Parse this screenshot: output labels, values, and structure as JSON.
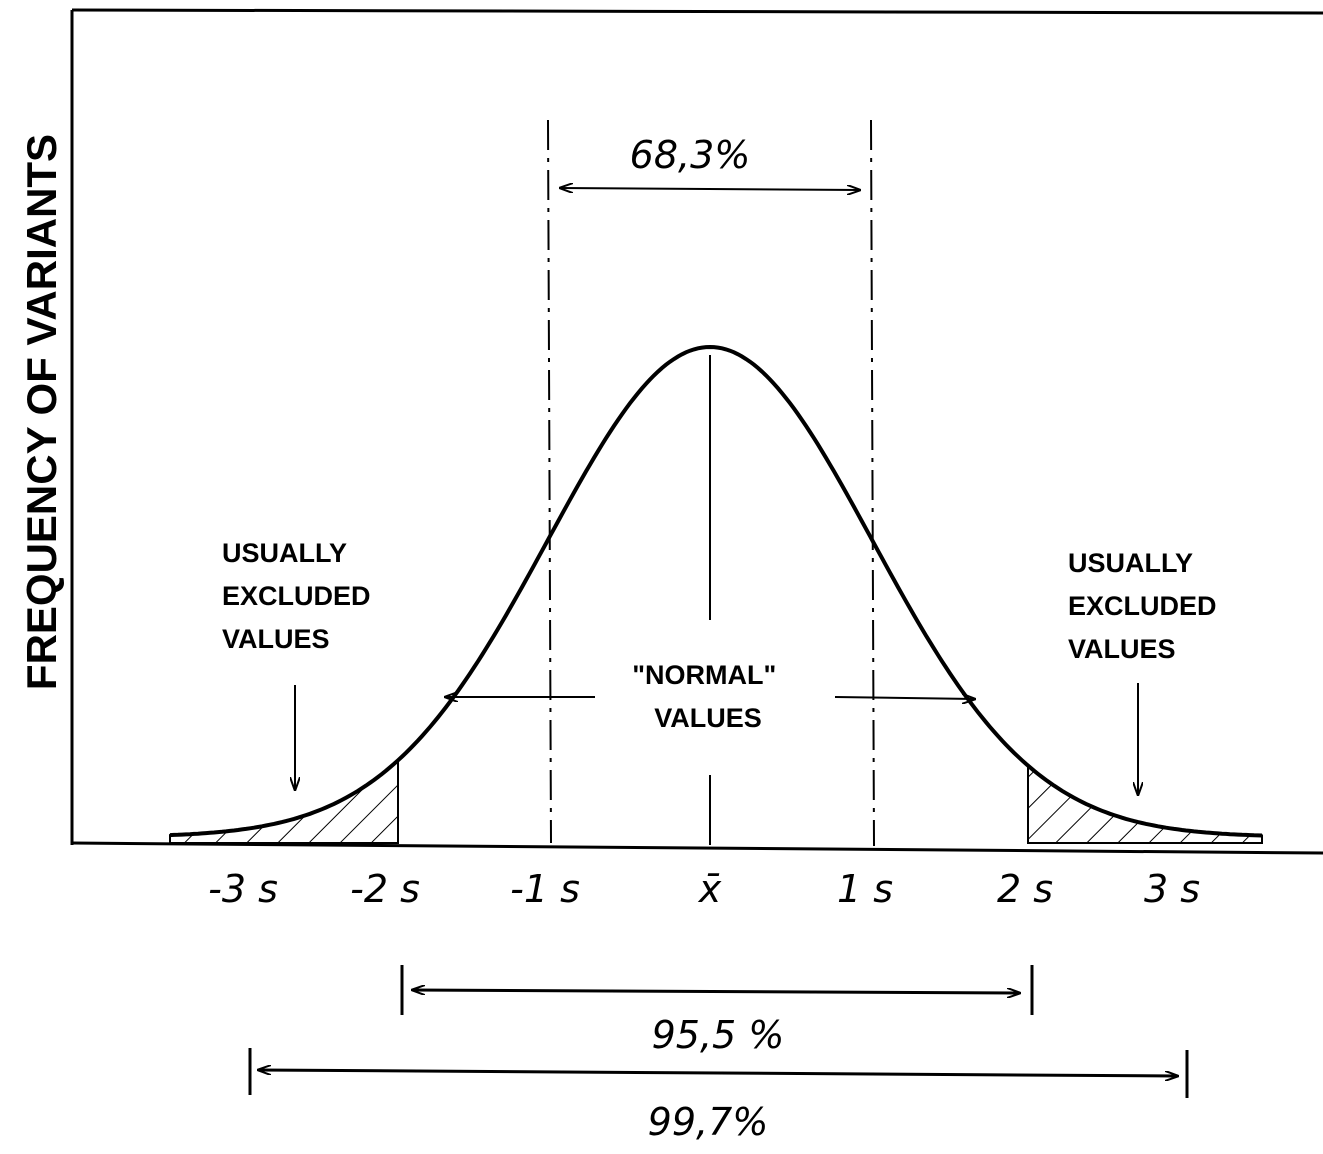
{
  "y_axis_label": "FREQUENCY OF VARIANTS",
  "x_labels": [
    "-3 s",
    "-2 s",
    "-1 s",
    "x̄",
    "1 s",
    "2 s",
    "3 s"
  ],
  "annotations": {
    "one_sigma": "68,3%",
    "left_excluded": [
      "USUALLY",
      "EXCLUDED",
      "VALUES"
    ],
    "right_excluded": [
      "USUALLY",
      "EXCLUDED",
      "VALUES"
    ],
    "normal": [
      "\"NORMAL\"",
      "VALUES"
    ],
    "two_sigma": "95,5 %",
    "three_sigma": "99,7%"
  }
}
